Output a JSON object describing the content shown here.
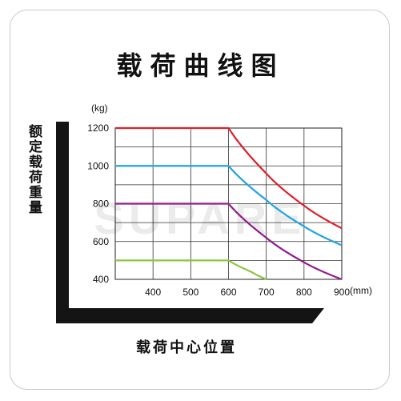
{
  "title": "载荷曲线图",
  "ylabel": "额定载荷重量",
  "xlabel": "载荷中心位置",
  "watermark": "SUPARE",
  "chart_data": {
    "type": "line",
    "y_unit": "(kg)",
    "x_unit": "(mm)",
    "xlim": [
      300,
      900
    ],
    "ylim": [
      400,
      1200
    ],
    "x_ticks": [
      400,
      500,
      600,
      700,
      800,
      900
    ],
    "y_ticks": [
      1200,
      1000,
      800,
      600,
      400
    ],
    "grid": true,
    "series": [
      {
        "color": "#e0202a",
        "x": [
          300,
          600,
          700,
          800,
          900
        ],
        "y": [
          1200,
          1200,
          960,
          790,
          670
        ]
      },
      {
        "color": "#1ea6e0",
        "x": [
          300,
          600,
          700,
          800,
          900
        ],
        "y": [
          1000,
          1000,
          820,
          680,
          580
        ]
      },
      {
        "color": "#8e1e8e",
        "x": [
          300,
          600,
          700,
          800,
          900
        ],
        "y": [
          800,
          800,
          620,
          490,
          400
        ]
      },
      {
        "color": "#8cc63f",
        "x": [
          300,
          600,
          660,
          700
        ],
        "y": [
          500,
          500,
          440,
          400
        ]
      }
    ]
  }
}
